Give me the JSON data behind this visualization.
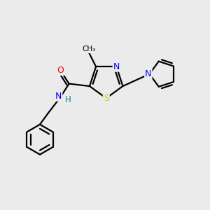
{
  "background_color": "#ebebeb",
  "atom_colors": {
    "C": "#000000",
    "N": "#0000ff",
    "O": "#ff0000",
    "S": "#cccc00",
    "H": "#008080"
  },
  "bond_color": "#000000",
  "bond_width": 1.6,
  "figsize": [
    3.0,
    3.0
  ],
  "dpi": 100,
  "xlim": [
    0.5,
    9.0
  ],
  "ylim": [
    1.5,
    8.5
  ]
}
